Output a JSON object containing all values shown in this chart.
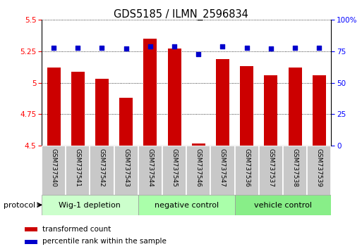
{
  "title": "GDS5185 / ILMN_2596834",
  "samples": [
    "GSM737540",
    "GSM737541",
    "GSM737542",
    "GSM737543",
    "GSM737544",
    "GSM737545",
    "GSM737546",
    "GSM737547",
    "GSM737536",
    "GSM737537",
    "GSM737538",
    "GSM737539"
  ],
  "transformed_count": [
    5.12,
    5.09,
    5.03,
    4.88,
    5.35,
    5.27,
    4.52,
    5.19,
    5.13,
    5.06,
    5.12,
    5.06
  ],
  "percentile_rank": [
    78,
    78,
    78,
    77,
    79,
    79,
    73,
    79,
    78,
    77,
    78,
    78
  ],
  "ylim_left": [
    4.5,
    5.5
  ],
  "ylim_right": [
    0,
    100
  ],
  "yticks_left": [
    4.5,
    4.75,
    5.0,
    5.25,
    5.5
  ],
  "yticks_right": [
    0,
    25,
    50,
    75,
    100
  ],
  "groups": [
    {
      "label": "Wig-1 depletion",
      "start": 0,
      "end": 4
    },
    {
      "label": "negative control",
      "start": 4,
      "end": 8
    },
    {
      "label": "vehicle control",
      "start": 8,
      "end": 12
    }
  ],
  "group_colors": [
    "#ccffcc",
    "#aaffaa",
    "#88ee88"
  ],
  "bar_color": "#cc0000",
  "dot_color": "#0000cc",
  "bar_bottom": 4.5,
  "legend_red_label": "transformed count",
  "legend_blue_label": "percentile rank within the sample",
  "protocol_label": "protocol"
}
